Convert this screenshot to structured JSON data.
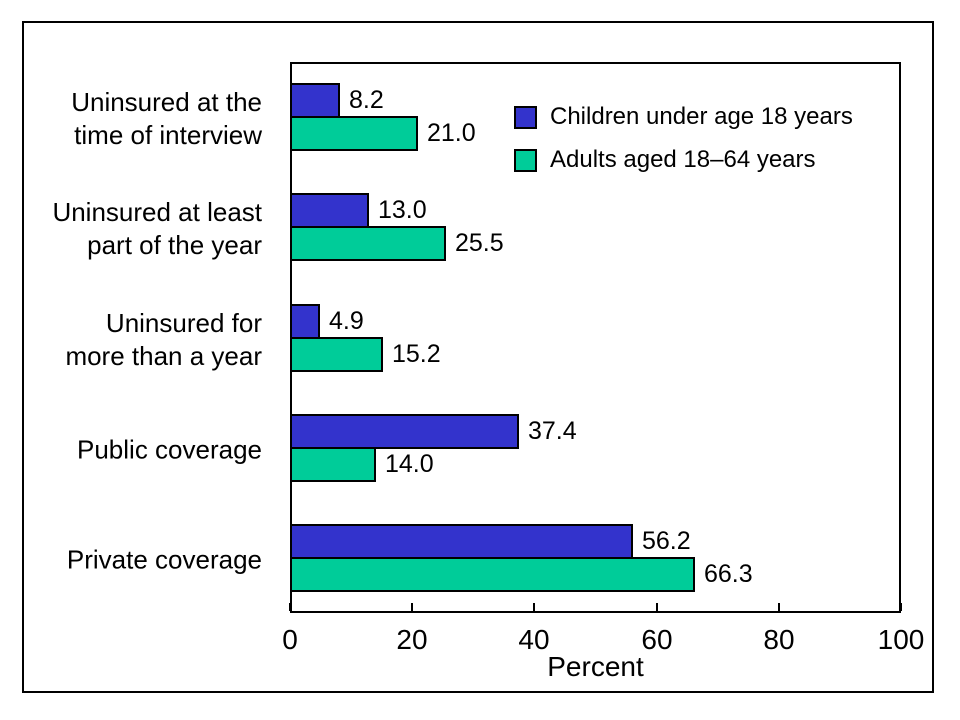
{
  "figure": {
    "background": "#FFFFFF",
    "border_color": "#000000",
    "text_color": "#000000"
  },
  "chart_data": {
    "type": "bar",
    "orientation": "horizontal",
    "title": "",
    "xlabel": "Percent",
    "xlim": [
      0,
      100
    ],
    "xticks": [
      0,
      20,
      40,
      60,
      80,
      100
    ],
    "grid": false,
    "legend_position": "top-right-inside",
    "categories": [
      [
        "Uninsured at the",
        "time of interview"
      ],
      [
        "Uninsured at least",
        "part of the year"
      ],
      [
        "Uninsured for",
        "more than a year"
      ],
      [
        "Public coverage"
      ],
      [
        "Private coverage"
      ]
    ],
    "series": [
      {
        "name": "Children under age 18 years",
        "color": "#3333CC",
        "values": [
          8.2,
          13.0,
          4.9,
          37.4,
          56.2
        ],
        "labels": [
          "8.2",
          "13.0",
          "4.9",
          "37.4",
          "56.2"
        ]
      },
      {
        "name": "Adults aged 18–64 years",
        "color": "#00CC99",
        "values": [
          21.0,
          25.5,
          15.2,
          14.0,
          66.3
        ],
        "labels": [
          "21.0",
          "25.5",
          "15.2",
          "14.0",
          "66.3"
        ]
      }
    ]
  }
}
